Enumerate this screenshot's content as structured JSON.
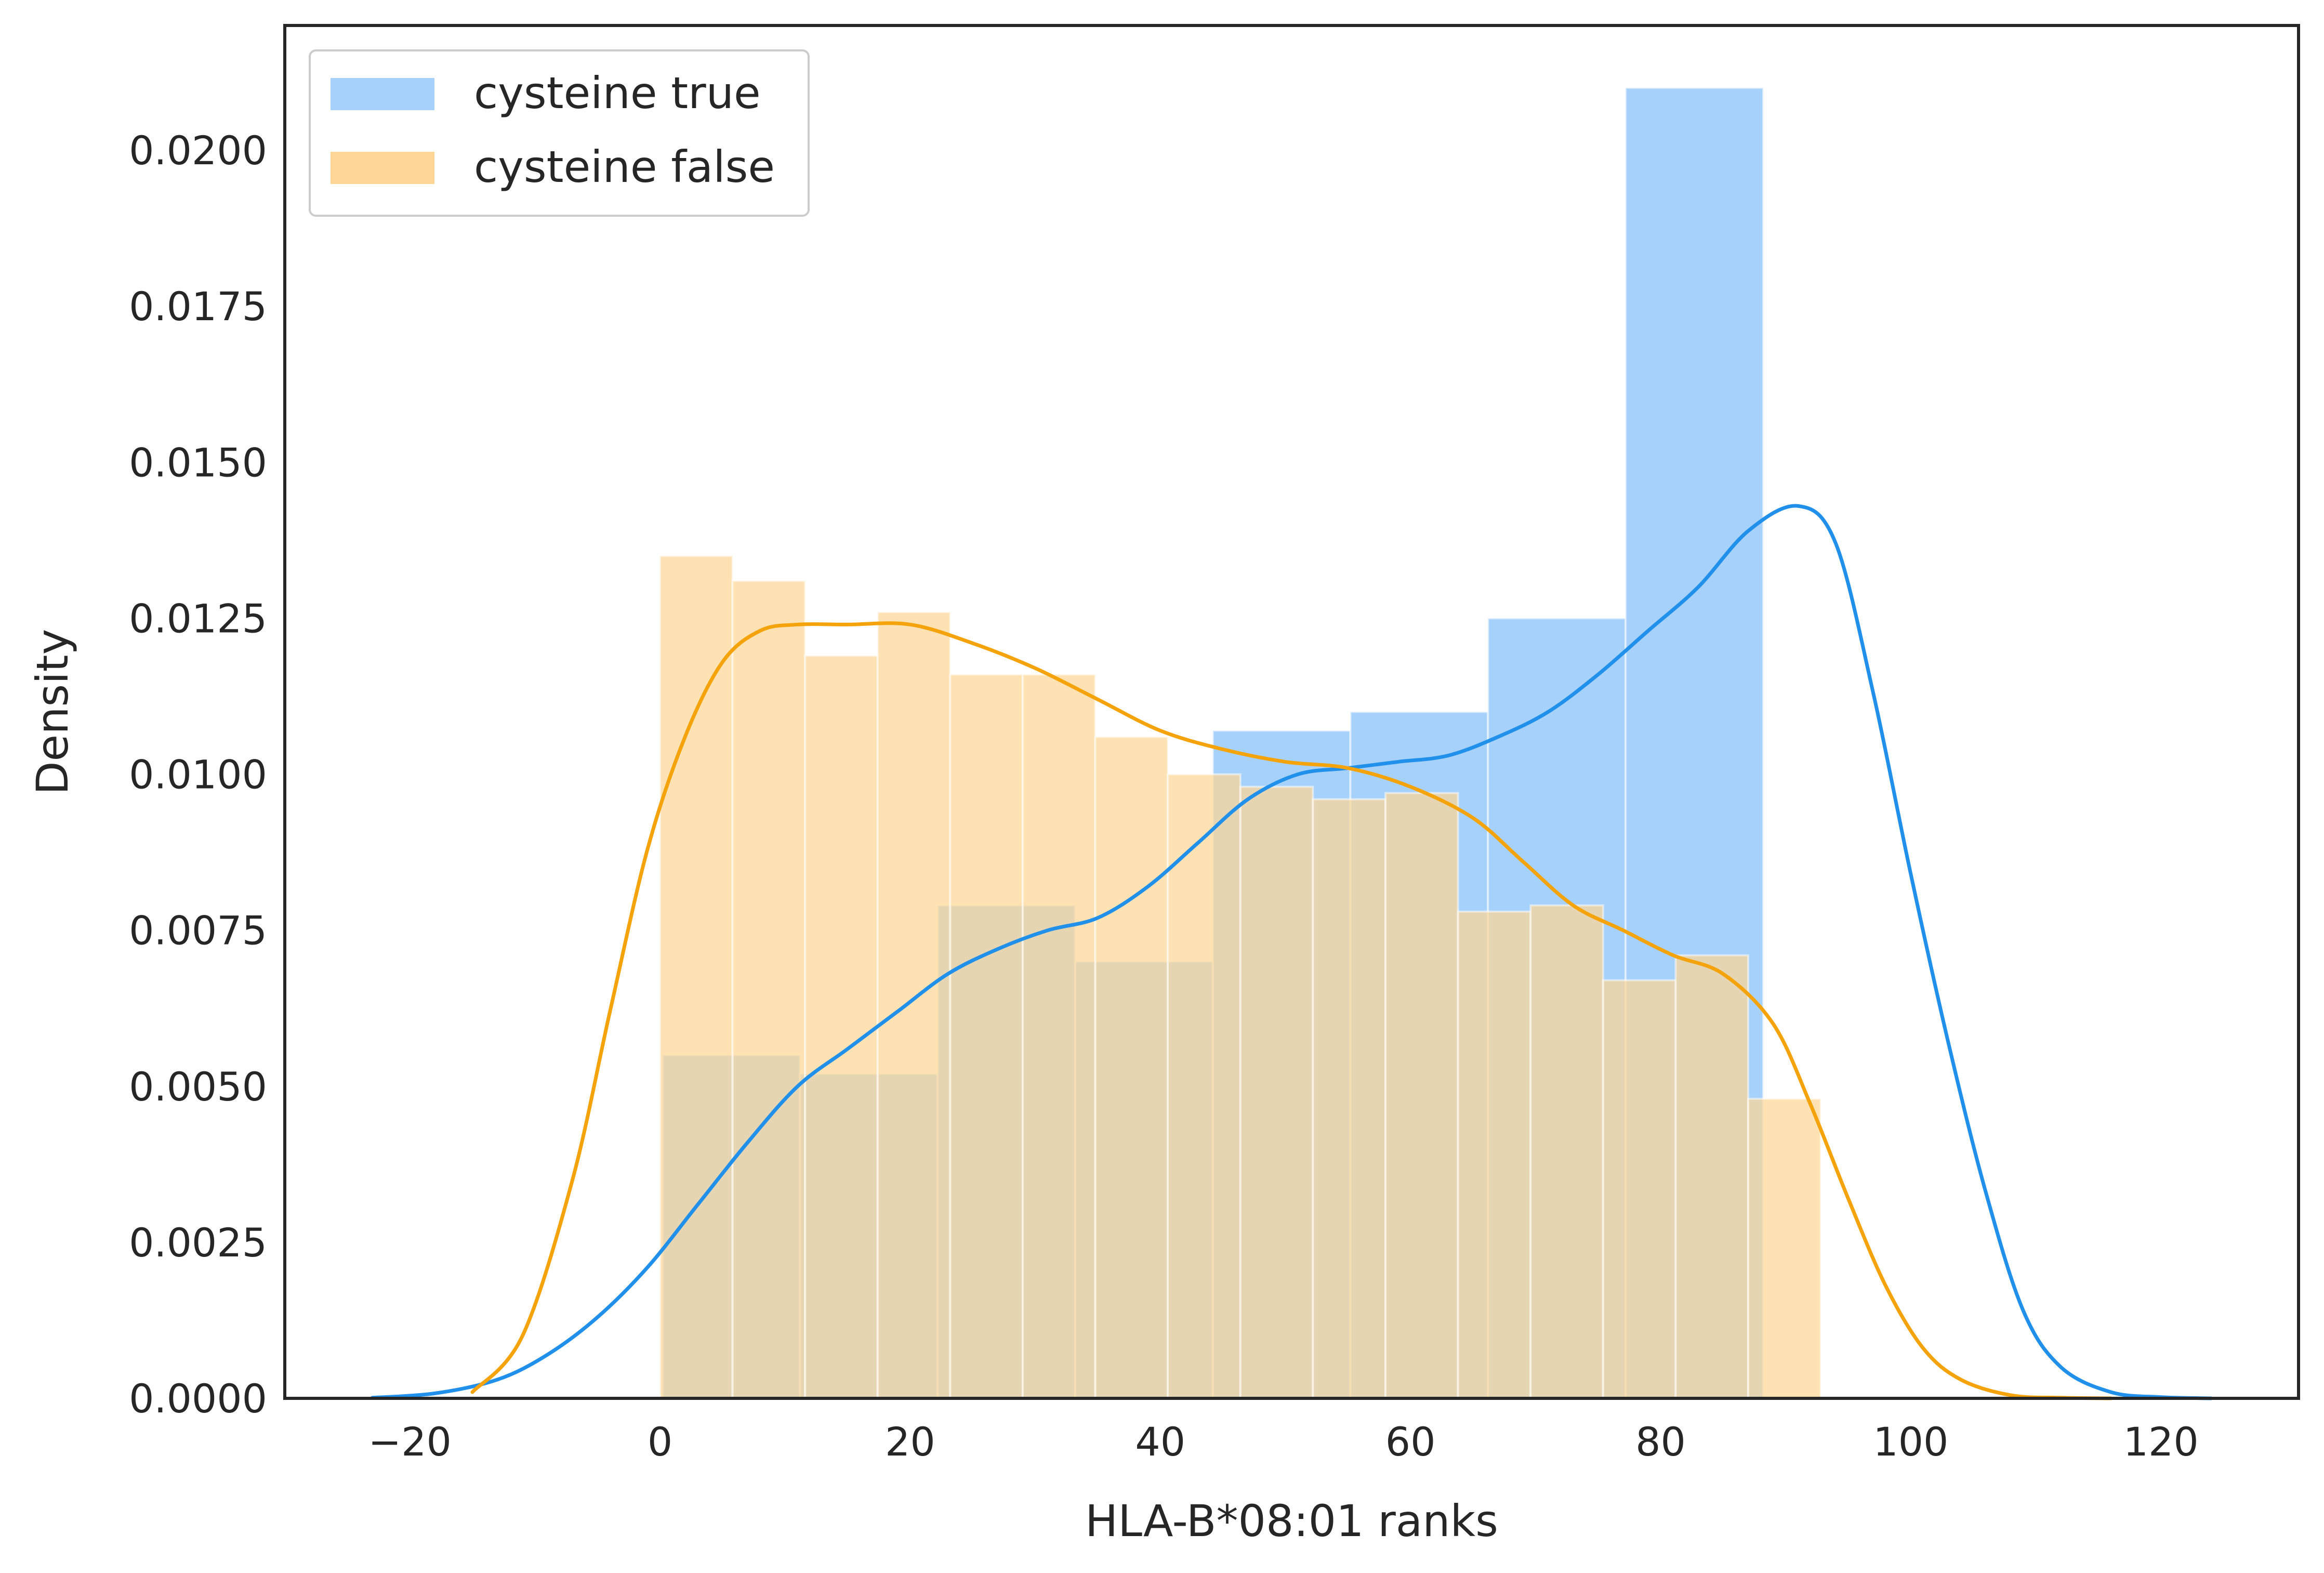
{
  "chart_data": {
    "type": "histogram+kde",
    "xlabel": "HLA-B*08:01 ranks",
    "ylabel": "Density",
    "xlim": [
      -30,
      131
    ],
    "ylim": [
      0,
      0.022
    ],
    "xticks": [
      -20,
      0,
      20,
      40,
      60,
      80,
      100,
      120
    ],
    "xtick_labels": [
      "−20",
      "0",
      "20",
      "40",
      "60",
      "80",
      "100",
      "120"
    ],
    "yticks": [
      0,
      0.0025,
      0.005,
      0.0075,
      0.01,
      0.0125,
      0.015,
      0.0175,
      0.02
    ],
    "ytick_labels": [
      "0.0000",
      "0.0025",
      "0.0050",
      "0.0075",
      "0.0100",
      "0.0125",
      "0.0150",
      "0.0175",
      "0.0200"
    ],
    "grid": false,
    "legend_position": "upper-left",
    "series": [
      {
        "name": "cysteine true",
        "hist_color": "#a6d1fb",
        "line_color": "#2090ea",
        "bin_edges": [
          0.2,
          11.2,
          22.2,
          33.2,
          44.2,
          55.2,
          66.2,
          77.2,
          88.2,
          99.2
        ],
        "hist_values": [
          0.0055,
          0.0052,
          0.0079,
          0.007,
          0.0107,
          0.011,
          0.0125,
          0.021,
          0.0
        ],
        "kde_x": [
          -23,
          -18,
          -13,
          -9,
          -5,
          -1,
          3,
          7,
          11,
          15,
          19,
          23,
          27,
          31,
          35,
          39,
          43,
          47,
          51,
          55,
          59,
          63,
          67,
          71,
          75,
          79,
          83,
          87,
          91,
          94,
          97,
          100,
          103,
          106,
          109,
          112,
          116,
          120,
          124
        ],
        "kde_y": [
          1e-05,
          8e-05,
          0.0003,
          0.0007,
          0.0013,
          0.0021,
          0.0031,
          0.0041,
          0.005,
          0.0056,
          0.0062,
          0.0068,
          0.0072,
          0.0075,
          0.0077,
          0.0082,
          0.0089,
          0.0096,
          0.01,
          0.0101,
          0.0102,
          0.0103,
          0.0106,
          0.011,
          0.0116,
          0.0123,
          0.013,
          0.0139,
          0.0143,
          0.0137,
          0.0113,
          0.0084,
          0.0057,
          0.0033,
          0.0014,
          0.0005,
          0.0001,
          2e-05,
          0.0
        ]
      },
      {
        "name": "cysteine false",
        "hist_color": "#fed796",
        "line_color": "#f5a30a",
        "bin_edges": [
          0,
          5.8,
          11.6,
          17.4,
          23.2,
          29,
          34.8,
          40.6,
          46.4,
          52.2,
          58,
          63.8,
          69.6,
          75.4,
          81.2,
          87,
          92.8,
          98.6
        ],
        "hist_values": [
          0.0135,
          0.0131,
          0.0119,
          0.0126,
          0.0116,
          0.0116,
          0.0106,
          0.01,
          0.0098,
          0.0096,
          0.0097,
          0.0078,
          0.0079,
          0.0067,
          0.0071,
          0.0048,
          0.0
        ],
        "kde_x": [
          -15,
          -11,
          -7,
          -4,
          -1,
          2,
          5,
          8,
          11,
          15,
          20,
          25,
          30,
          35,
          40,
          45,
          50,
          55,
          60,
          65,
          69,
          73,
          77,
          81,
          85,
          89,
          92,
          95,
          98,
          101,
          104,
          108,
          112,
          116
        ],
        "kde_y": [
          0.0001,
          0.001,
          0.0035,
          0.0062,
          0.0088,
          0.0106,
          0.0118,
          0.0123,
          0.0124,
          0.0124,
          0.0124,
          0.0121,
          0.0117,
          0.0112,
          0.0107,
          0.0104,
          0.0102,
          0.0101,
          0.0098,
          0.0093,
          0.0086,
          0.0079,
          0.0075,
          0.0071,
          0.0068,
          0.006,
          0.0047,
          0.0032,
          0.0018,
          0.0008,
          0.0003,
          5e-05,
          1e-05,
          0.0
        ]
      }
    ]
  }
}
